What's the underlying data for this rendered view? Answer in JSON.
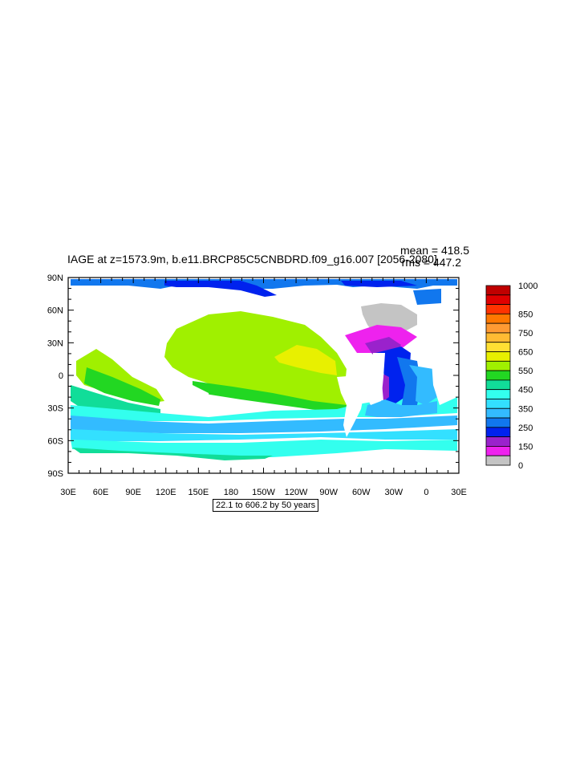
{
  "map": {
    "title": "IAGE at z=1573.9m, b.e11.BRCP85C5CNBDRD.f09_g16.007 [2056-2080]",
    "mean_label": "mean = 418.5",
    "rms_label": "rms = 447.2",
    "range_label": "22.1 to 606.2 by 50 years",
    "lat_labels": [
      "90N",
      "60N",
      "30N",
      "0",
      "30S",
      "60S",
      "90S"
    ],
    "lon_labels": [
      "30E",
      "60E",
      "90E",
      "120E",
      "150E",
      "180",
      "150W",
      "120W",
      "90W",
      "60W",
      "30W",
      "0",
      "30E"
    ]
  },
  "colorbar": {
    "labels": [
      "1000",
      "850",
      "750",
      "650",
      "550",
      "450",
      "350",
      "250",
      "150",
      "0"
    ],
    "colors": [
      "#c00000",
      "#e00000",
      "#ff3300",
      "#ff7700",
      "#ff9a33",
      "#ffbb33",
      "#ffe033",
      "#e8f000",
      "#a0f000",
      "#22d722",
      "#11dd99",
      "#33ffee",
      "#33e0ff",
      "#33bbff",
      "#1177ee",
      "#0022ee",
      "#9a22cc",
      "#ee22ee",
      "#c4c4c4"
    ]
  }
}
